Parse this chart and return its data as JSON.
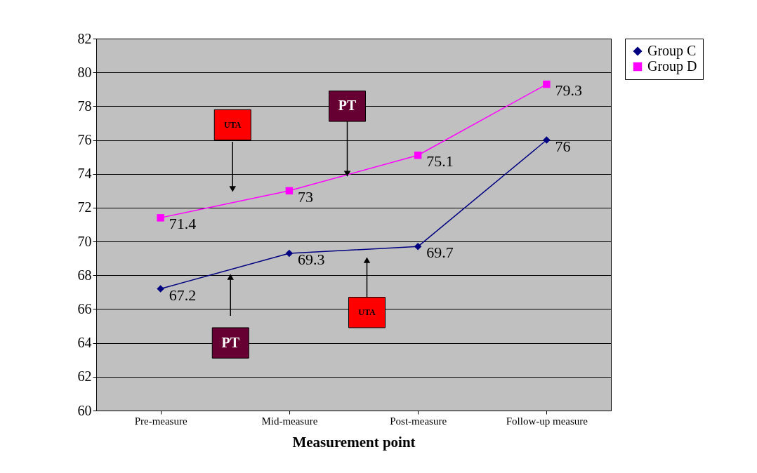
{
  "chart_data": {
    "type": "line",
    "xlabel": "Measurement point",
    "categories": [
      "Pre-measure",
      "Mid-measure",
      "Post-measure",
      "Follow-up measure"
    ],
    "series": [
      {
        "name": "Group C",
        "color": "#000080",
        "marker": "diamond",
        "values": [
          67.2,
          69.3,
          69.7,
          76
        ]
      },
      {
        "name": "Group D",
        "color": "#ff00ff",
        "marker": "square",
        "values": [
          71.4,
          73,
          75.1,
          79.3
        ]
      }
    ],
    "ylim": [
      60,
      82
    ],
    "yticks": [
      60,
      62,
      64,
      66,
      68,
      70,
      72,
      74,
      76,
      78,
      80,
      82
    ],
    "grid": "y",
    "legend": "right",
    "data_labels": true,
    "annotations": [
      "UTA",
      {
        "text": "PT",
        "y": 74.0
      },
      "PT",
      {
        "text": "UTA",
        "y": 68.9
      }
    ]
  }
}
